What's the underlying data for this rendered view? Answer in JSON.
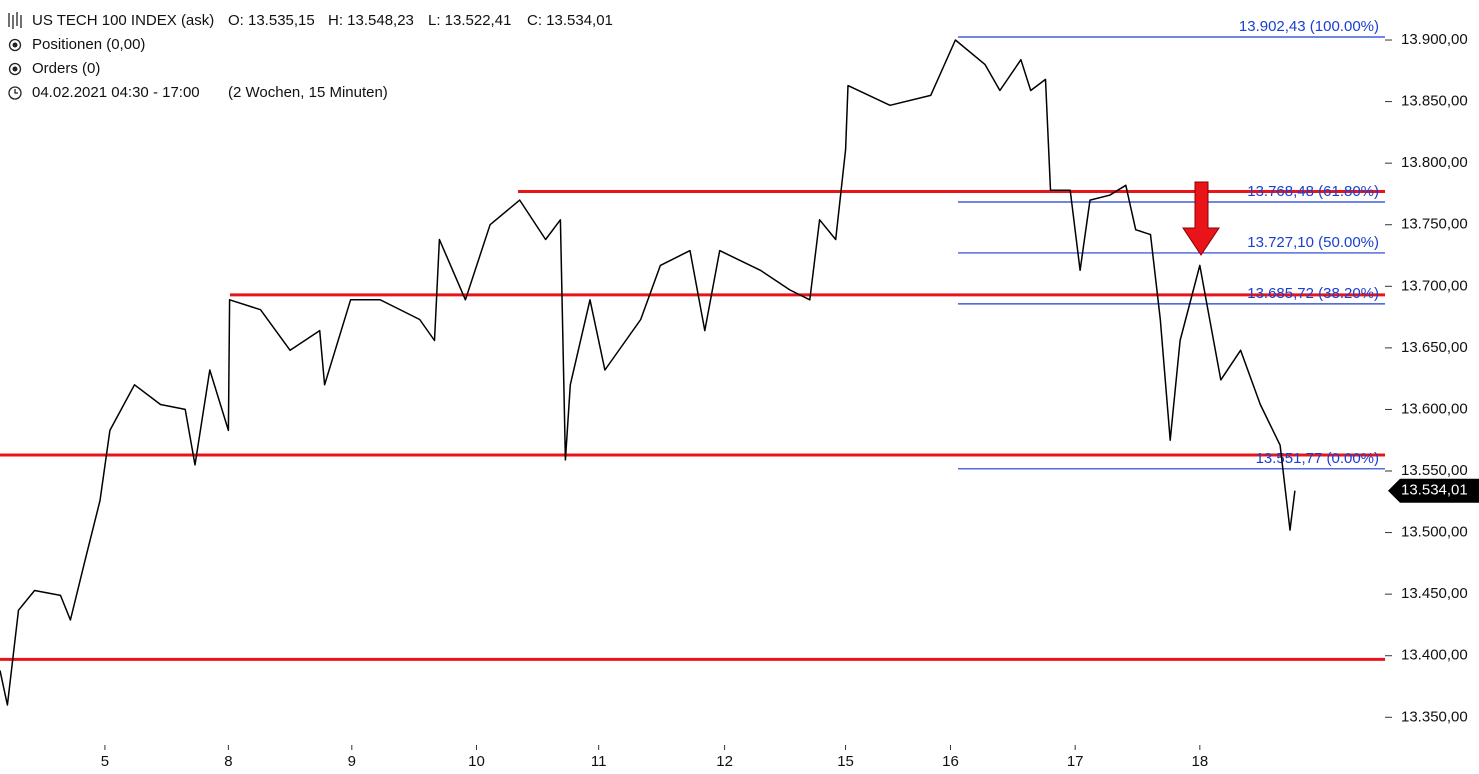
{
  "chart_data": {
    "type": "line",
    "header": {
      "instrument": "US TECH 100 INDEX (ask)",
      "open": "O: 13.535,15",
      "high": "H: 13.548,23",
      "low": "L: 13.522,41",
      "close": "C: 13.534,01",
      "positions": "Positionen (0,00)",
      "orders": "Orders (0)",
      "period": "04.02.2021 04:30 - 17:00",
      "range": "(2 Wochen, 15 Minuten)"
    },
    "x": [
      0.15,
      0.21,
      0.3,
      0.43,
      0.64,
      0.72,
      0.84,
      0.96,
      1.04,
      1.24,
      1.45,
      1.65,
      1.73,
      1.85,
      2.0,
      2.01,
      2.26,
      2.5,
      2.74,
      2.78,
      2.99,
      3.23,
      3.55,
      3.67,
      3.71,
      3.92,
      4.12,
      4.36,
      4.57,
      4.69,
      4.73,
      4.77,
      4.93,
      5.05,
      5.34,
      5.5,
      5.74,
      5.86,
      5.98,
      6.31,
      6.55,
      6.71,
      6.79,
      6.92,
      7.0,
      7.02,
      7.36,
      7.69,
      7.89,
      8.13,
      8.25,
      8.42,
      8.5,
      8.62,
      8.66,
      8.82,
      8.9,
      8.98,
      9.14,
      9.27,
      9.35,
      9.47,
      9.55,
      9.63,
      9.71,
      9.87,
      9.95,
      10.04,
      10.2,
      10.36,
      10.52,
      10.6,
      10.64
    ],
    "series": [
      {
        "name": "US TECH 100 INDEX",
        "color": "#000000",
        "values": [
          13388,
          13360,
          13437,
          13453,
          13449,
          13429,
          13478,
          13526,
          13583,
          13620,
          13604,
          13600,
          13555,
          13632,
          13583,
          13689,
          13681,
          13648,
          13664,
          13620,
          13689,
          13689,
          13673,
          13656,
          13738,
          13689,
          13750,
          13770,
          13738,
          13754,
          13559,
          13620,
          13689,
          13632,
          13673,
          13717,
          13729,
          13664,
          13729,
          13713,
          13697,
          13689,
          13754,
          13738,
          13811,
          13863,
          13847,
          13855,
          13900,
          13880,
          13859,
          13884,
          13859,
          13868,
          13778,
          13778,
          13713,
          13770,
          13774,
          13782,
          13746,
          13742,
          13673,
          13575,
          13656,
          13717,
          13673,
          13624,
          13648,
          13604,
          13571,
          13502,
          13534.01
        ]
      }
    ],
    "xlim": [
      0.15,
      11.37
    ],
    "ylim": [
      13327.5,
      13932.5
    ],
    "xticks": [
      {
        "value": 1,
        "label": "5"
      },
      {
        "value": 2,
        "label": "8"
      },
      {
        "value": 3,
        "label": "9"
      },
      {
        "value": 4.01,
        "label": "10"
      },
      {
        "value": 5,
        "label": "11"
      },
      {
        "value": 6.02,
        "label": "12"
      },
      {
        "value": 7,
        "label": "15"
      },
      {
        "value": 7.85,
        "label": "16"
      },
      {
        "value": 8.86,
        "label": "17"
      },
      {
        "value": 9.87,
        "label": "18"
      }
    ],
    "yticks": [
      {
        "value": 13350,
        "label": "13.350,00"
      },
      {
        "value": 13400,
        "label": "13.400,00"
      },
      {
        "value": 13450,
        "label": "13.450,00"
      },
      {
        "value": 13500,
        "label": "13.500,00"
      },
      {
        "value": 13550,
        "label": "13.550,00"
      },
      {
        "value": 13600,
        "label": "13.600,00"
      },
      {
        "value": 13650,
        "label": "13.650,00"
      },
      {
        "value": 13700,
        "label": "13.700,00"
      },
      {
        "value": 13750,
        "label": "13.750,00"
      },
      {
        "value": 13800,
        "label": "13.800,00"
      },
      {
        "value": 13850,
        "label": "13.850,00"
      },
      {
        "value": 13900,
        "label": "13.900,00"
      }
    ],
    "support_resistance": {
      "color": "#e8141a",
      "values": [
        13777,
        13693,
        13563,
        13397
      ]
    },
    "fib_levels": {
      "color": "#1a3fd0",
      "levels": [
        {
          "value": 13902.43,
          "label": "13.902,43 (100.00%)"
        },
        {
          "value": 13768.48,
          "label": "13.768,48 (61.80%)"
        },
        {
          "value": 13727.1,
          "label": "13.727,10 (50.00%)"
        },
        {
          "value": 13685.72,
          "label": "13.685,72 (38.20%)"
        },
        {
          "value": 13551.77,
          "label": "13.551,77 (0.00%)"
        }
      ]
    },
    "last_price": {
      "value": 13534.01,
      "label": "13.534,01"
    }
  }
}
